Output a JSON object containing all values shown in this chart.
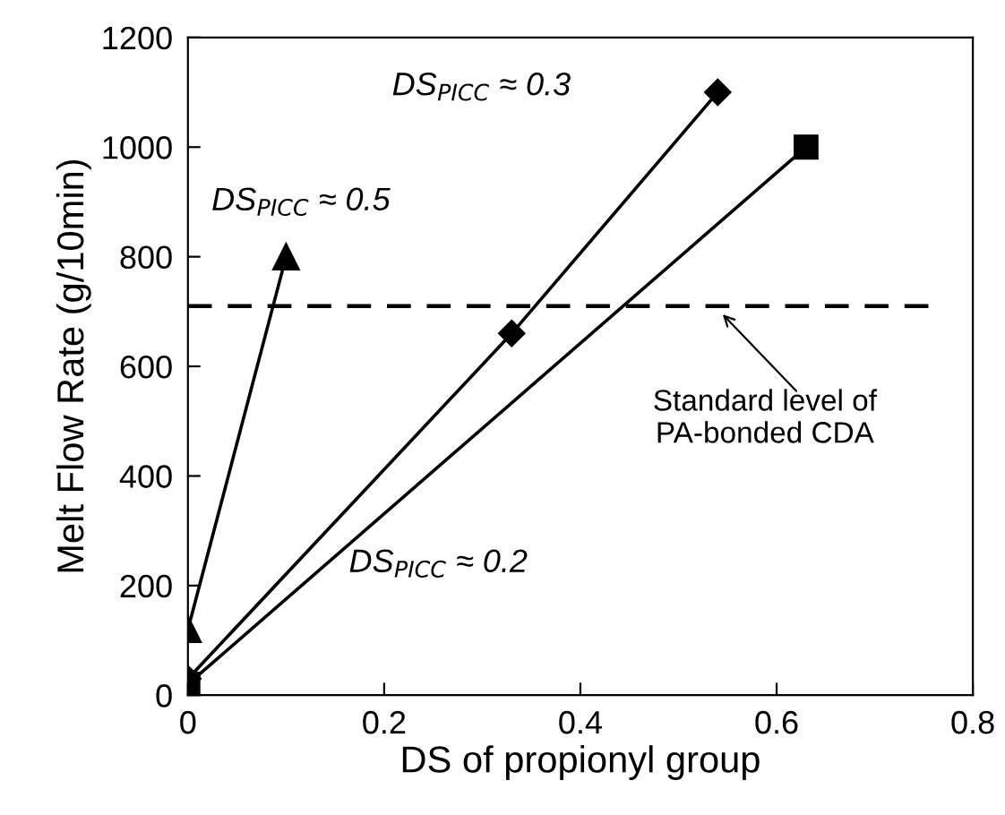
{
  "chart_data": {
    "type": "line",
    "xlabel": "DS of propionyl group",
    "ylabel": "Melt Flow Rate (g/10min)",
    "series": [
      {
        "color": "#000000",
        "marker": "triangle",
        "x": [
          0,
          0.1
        ],
        "values": [
          120,
          800
        ]
      },
      {
        "color": "#000000",
        "marker": "diamond",
        "x": [
          0,
          0.33,
          0.54
        ],
        "values": [
          30,
          660,
          1100
        ]
      },
      {
        "color": "#000000",
        "marker": "square",
        "x": [
          0,
          0.63
        ],
        "values": [
          20,
          1000
        ]
      }
    ],
    "annotations": [
      "DS$_{PICC}$ ≈ 0.5",
      "DS$_{PICC}$ ≈ 0.3",
      "DS$_{PICC}$ ≈ 0.2"
    ],
    "ref_lines": [
      {
        "axis": "y",
        "value": 710,
        "label": "Standard level of\nPA-bonded CDA",
        "color": "#000000",
        "line_style": "dashed"
      }
    ],
    "xlim": [
      0,
      0.8
    ],
    "xticks": [
      0,
      0.2,
      0.4,
      0.6,
      0.8
    ],
    "ylim": [
      0,
      1200
    ],
    "yticks": [
      0,
      200,
      400,
      600,
      800,
      1000,
      1200
    ],
    "grid": false,
    "legend": false,
    "line_style": "solid"
  }
}
